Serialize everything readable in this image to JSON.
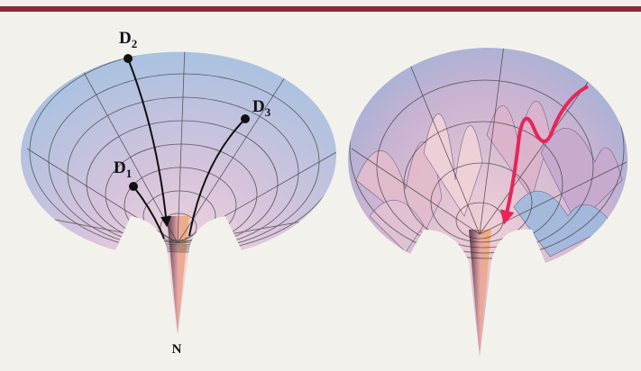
{
  "labels": [
    {
      "letter": "D",
      "subscript": "2"
    },
    {
      "letter": "D",
      "subscript": "3"
    },
    {
      "letter": "D",
      "subscript": "1"
    },
    {
      "letter": "N"
    }
  ]
}
